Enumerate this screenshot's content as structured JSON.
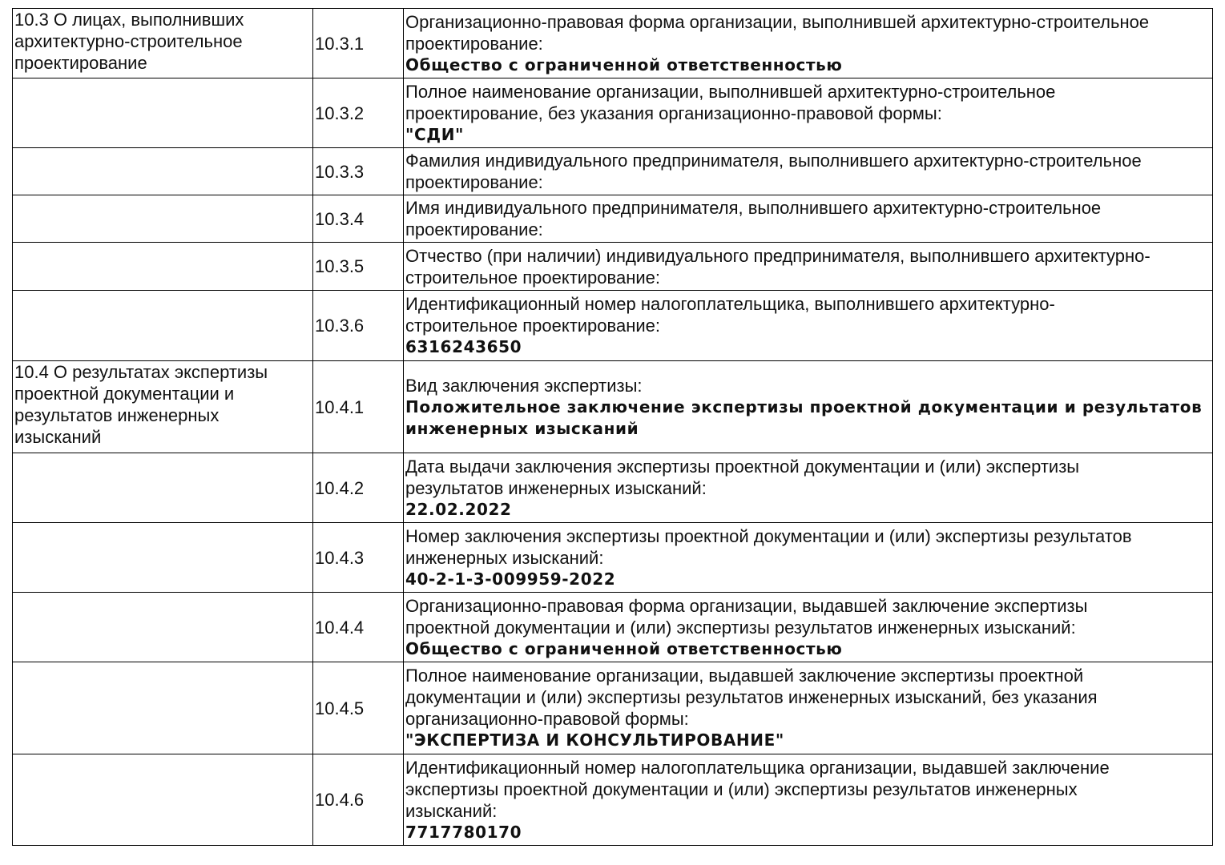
{
  "rows": [
    {
      "section": "10.3 О лицах, выполнивших\nархитектурно-строительное\nпроектирование",
      "code": "10.3.1",
      "label": "Организационно-правовая форма организации, выполнившей архитектурно-строительное\nпроектирование:",
      "value": "Общество с ограниченной ответственностью"
    },
    {
      "section": "",
      "code": "10.3.2",
      "label": "Полное наименование организации, выполнившей архитектурно-строительное\nпроектирование, без указания организационно-правовой формы:",
      "value": "\"СДИ\""
    },
    {
      "section": "",
      "code": "10.3.3",
      "label": "Фамилия индивидуального предпринимателя, выполнившего архитектурно-строительное\nпроектирование:",
      "value": ""
    },
    {
      "section": "",
      "code": "10.3.4",
      "label": "Имя индивидуального предпринимателя, выполнившего архитектурно-строительное\nпроектирование:",
      "value": ""
    },
    {
      "section": "",
      "code": "10.3.5",
      "label": "Отчество (при наличии) индивидуального предпринимателя, выполнившего архитектурно-\nстроительное проектирование:",
      "value": ""
    },
    {
      "section": "",
      "code": "10.3.6",
      "label": "Идентификационный номер налогоплательщика, выполнившего архитектурно-\nстроительное проектирование:",
      "value": "6316243650"
    },
    {
      "section": "10.4 О результатах экспертизы\nпроектной документации и\nрезультатов инженерных\nизысканий",
      "code": "10.4.1",
      "label": "Вид заключения экспертизы:",
      "value": "Положительное заключение экспертизы проектной документации и результатов\nинженерных изысканий"
    },
    {
      "section": "",
      "code": "10.4.2",
      "label": "Дата выдачи заключения экспертизы проектной документации и (или) экспертизы\nрезультатов инженерных изысканий:",
      "value": "22.02.2022"
    },
    {
      "section": "",
      "code": "10.4.3",
      "label": "Номер заключения экспертизы проектной документации и (или) экспертизы результатов\nинженерных изысканий:",
      "value": "40-2-1-3-009959-2022"
    },
    {
      "section": "",
      "code": "10.4.4",
      "label": "Организационно-правовая форма организации, выдавшей заключение экспертизы\nпроектной документации и (или) экспертизы результатов инженерных изысканий:",
      "value": "Общество с ограниченной ответственностью"
    },
    {
      "section": "",
      "code": "10.4.5",
      "label": "Полное наименование организации, выдавшей заключение экспертизы проектной\nдокументации и (или) экспертизы результатов инженерных изысканий, без указания\nорганизационно-правовой формы:",
      "value": "\"ЭКСПЕРТИЗА И КОНСУЛЬТИРОВАНИЕ\""
    },
    {
      "section": "",
      "code": "10.4.6",
      "label": "Идентификационный номер налогоплательщика организации, выдавшей заключение\nэкспертизы проектной документации и (или) экспертизы результатов инженерных\nизысканий:",
      "value": "7717780170"
    }
  ]
}
